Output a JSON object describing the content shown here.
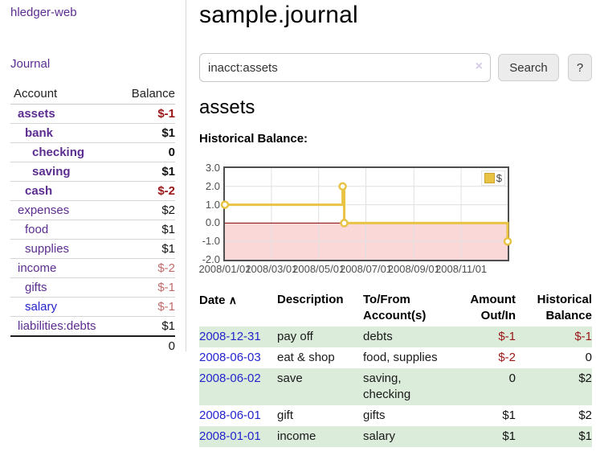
{
  "colors": {
    "link_purple": "#5c2d91",
    "link_blue": "#2424cc",
    "negative_strong": "#9a1616",
    "negative_soft": "#bf6b6b",
    "row_stripe_green": "#dcecdb",
    "series_yellow": "#e9c344",
    "zero_line_red": "#8b0000",
    "negative_fill_pink": "#fbd8d8",
    "grid_gray": "#e0e0e0",
    "plot_border_gray": "#4f4f4f"
  },
  "sidebar": {
    "app_title": "hledger-web",
    "journal_link": "Journal",
    "accounts_table": {
      "headers": {
        "account": "Account",
        "balance": "Balance"
      },
      "rows": [
        {
          "name": "assets",
          "depth": 0,
          "bold": true,
          "balance": "$-1",
          "negative": "strong"
        },
        {
          "name": "bank",
          "depth": 1,
          "bold": true,
          "balance": "$1",
          "negative": "none"
        },
        {
          "name": "checking",
          "depth": 2,
          "bold": true,
          "balance": "0",
          "negative": "none"
        },
        {
          "name": "saving",
          "depth": 2,
          "bold": true,
          "balance": "$1",
          "negative": "none"
        },
        {
          "name": "cash",
          "depth": 1,
          "bold": true,
          "balance": "$-2",
          "negative": "strong"
        },
        {
          "name": "expenses",
          "depth": 0,
          "bold": false,
          "balance": "$2",
          "negative": "none"
        },
        {
          "name": "food",
          "depth": 1,
          "bold": false,
          "balance": "$1",
          "negative": "none"
        },
        {
          "name": "supplies",
          "depth": 1,
          "bold": false,
          "balance": "$1",
          "negative": "none"
        },
        {
          "name": "income",
          "depth": 0,
          "bold": false,
          "balance": "$-2",
          "negative": "soft"
        },
        {
          "name": "gifts",
          "depth": 1,
          "bold": false,
          "balance": "$-1",
          "negative": "soft"
        },
        {
          "name": "salary",
          "depth": 1,
          "bold": false,
          "balance": "$-1",
          "negative": "soft",
          "link_color": "blue"
        },
        {
          "name": "liabilities:debts",
          "depth": 0,
          "bold": false,
          "balance": "$1",
          "negative": "none"
        }
      ],
      "total": "0"
    }
  },
  "header": {
    "title": "sample.journal"
  },
  "search": {
    "query": "inacct:assets",
    "clear_icon": "×",
    "search_label": "Search",
    "help_label": "?"
  },
  "account_page": {
    "heading": "assets",
    "chart_label": "Historical Balance:"
  },
  "chart_data": {
    "type": "line",
    "title": "Historical Balance:",
    "series": [
      {
        "name": "$",
        "color": "#e9c344",
        "step": true,
        "points": [
          [
            "2008-01-01",
            1
          ],
          [
            "2008-06-01",
            2
          ],
          [
            "2008-06-03",
            0
          ],
          [
            "2008-12-31",
            -1
          ]
        ]
      }
    ],
    "x_range": [
      "2008-01-01",
      "2008-12-31"
    ],
    "ylim": [
      -2,
      3
    ],
    "y_ticks": [
      "3.0",
      "2.0",
      "1.0",
      "0.0",
      "-1.0",
      "-2.0"
    ],
    "x_ticks": [
      "2008/01/01",
      "2008/03/01",
      "2008/05/01",
      "2008/07/01",
      "2008/09/01",
      "2008/11/01"
    ],
    "legend": {
      "label": "$",
      "position": "top-right"
    },
    "grid": true,
    "zero_line_color": "#8b0000",
    "negative_region_color": "#fbd8d8"
  },
  "register": {
    "headers": {
      "date": "Date",
      "description": "Description",
      "accounts": "To/From Account(s)",
      "amount": "Amount Out/In",
      "balance": "Historical Balance"
    },
    "sort_icon": "∧",
    "rows": [
      {
        "date": "2008-12-31",
        "description": "pay off",
        "accounts": "debts",
        "amount": "$-1",
        "amount_neg": true,
        "balance": "$-1",
        "balance_neg": true
      },
      {
        "date": "2008-06-03",
        "description": "eat & shop",
        "accounts": "food, supplies",
        "amount": "$-2",
        "amount_neg": true,
        "balance": "0",
        "balance_neg": false
      },
      {
        "date": "2008-06-02",
        "description": "save",
        "accounts": "saving, checking",
        "amount": "0",
        "amount_neg": false,
        "balance": "$2",
        "balance_neg": false
      },
      {
        "date": "2008-06-01",
        "description": "gift",
        "accounts": "gifts",
        "amount": "$1",
        "amount_neg": false,
        "balance": "$2",
        "balance_neg": false
      },
      {
        "date": "2008-01-01",
        "description": "income",
        "accounts": "salary",
        "amount": "$1",
        "amount_neg": false,
        "balance": "$1",
        "balance_neg": false
      }
    ]
  }
}
